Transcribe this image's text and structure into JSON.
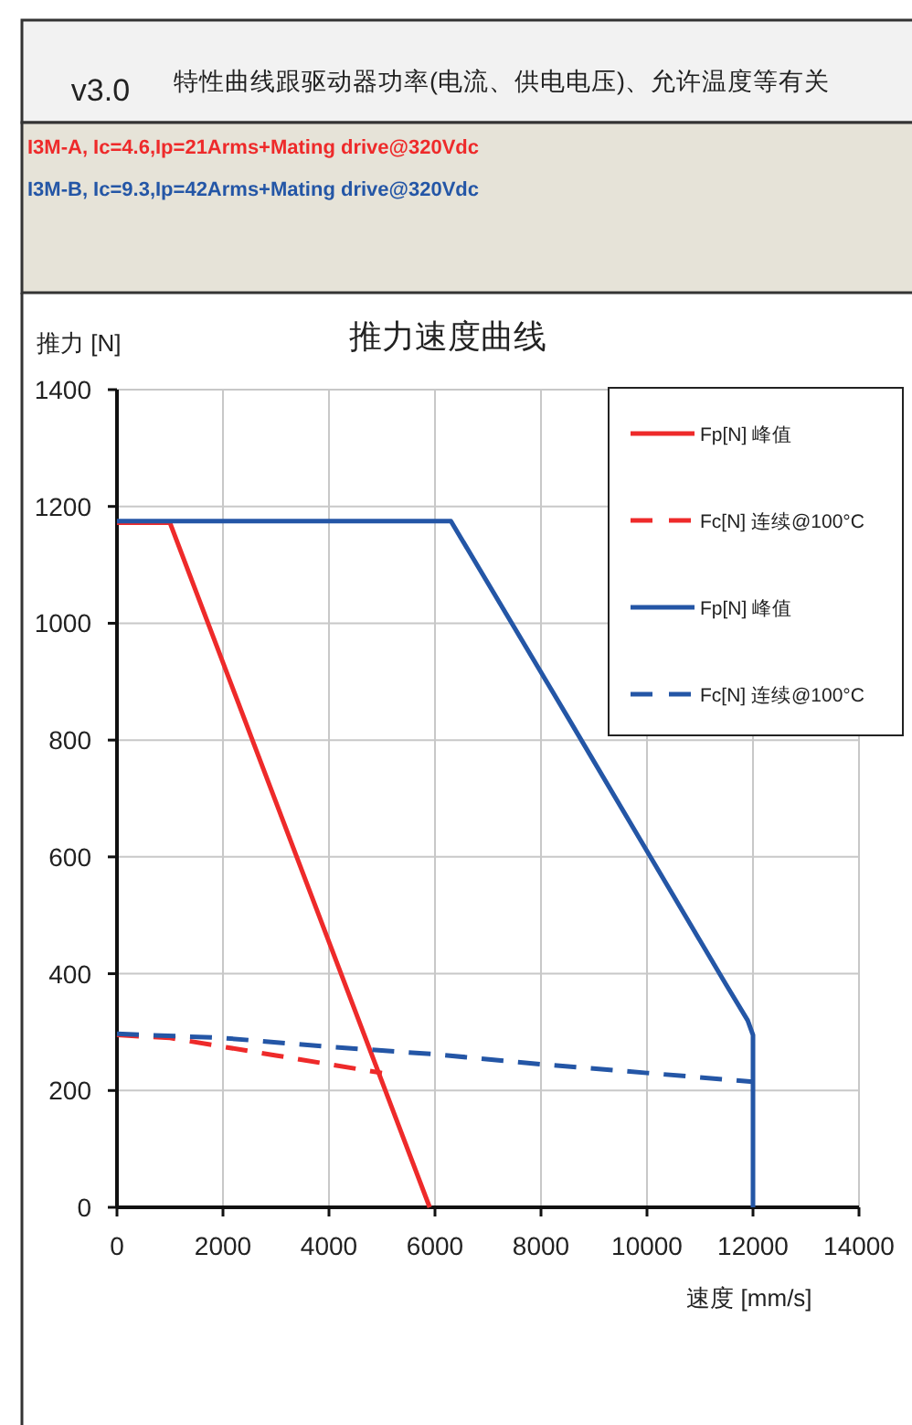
{
  "chart_data": {
    "type": "line",
    "title": "推力速度曲线",
    "xlabel": "速度 [mm/s]",
    "ylabel": "推力 [N]",
    "annotations": [
      "v3.0",
      "特性曲线跟驱动器功率(电流、供电电压)、允许温度等有关",
      "I3M-A, Ic=4.6,Ip=21Arms+Mating drive@320Vdc",
      "I3M-B, Ic=9.3,Ip=42Arms+Mating drive@320Vdc"
    ],
    "xlim": [
      0,
      14000
    ],
    "xticks": [
      0,
      2000,
      4000,
      6000,
      8000,
      10000,
      12000,
      14000
    ],
    "ylim": [
      0,
      1400
    ],
    "yticks": [
      0,
      200,
      400,
      600,
      800,
      1000,
      1200,
      1400
    ],
    "grid": true,
    "legend": "top right",
    "marker": "none",
    "series": [
      {
        "name": "Fp[N] 峰值",
        "color": "#ee2a2a",
        "line_style": "solid",
        "x": [
          0,
          1000,
          5900
        ],
        "values": [
          1172,
          1172,
          0
        ]
      },
      {
        "name": "Fc[N] 连续@100°C",
        "color": "#ee2a2a",
        "line_style": "dashed",
        "x": [
          0,
          1000,
          2000,
          3000,
          4000,
          5000
        ],
        "values": [
          295,
          290,
          275,
          260,
          245,
          230
        ]
      },
      {
        "name": "Fp[N] 峰值",
        "color": "#2456a6",
        "line_style": "solid",
        "x": [
          0,
          6300,
          8500,
          10000,
          11500,
          11900,
          12000,
          12000
        ],
        "values": [
          1175,
          1175,
          840,
          610,
          380,
          320,
          295,
          0
        ]
      },
      {
        "name": "Fc[N] 连续@100°C",
        "color": "#2456a6",
        "line_style": "dashed",
        "x": [
          0,
          2000,
          4000,
          6000,
          8000,
          10000,
          12000
        ],
        "values": [
          297,
          290,
          275,
          262,
          245,
          230,
          215
        ]
      }
    ]
  }
}
